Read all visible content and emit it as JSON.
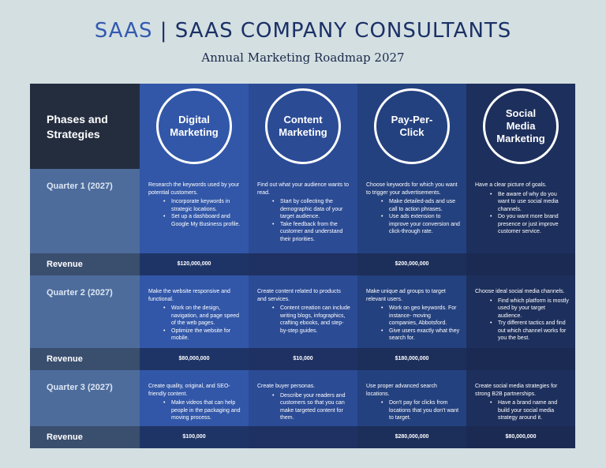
{
  "header": {
    "brand": "SAAS",
    "title_rest": "| SAAS COMPANY CONSULTANTS",
    "subtitle": "Annual Marketing Roadmap 2027"
  },
  "table": {
    "corner_label": "Phases and Strategies",
    "columns": [
      "Digital Marketing",
      "Content Marketing",
      "Pay-Per-Click",
      "Social Media Marketing"
    ],
    "revenue_label": "Revenue",
    "quarters": [
      {
        "label": "Quarter 1 (2027)",
        "cells": [
          {
            "intro": "Research the keywords used by your potential customers.",
            "bullets": [
              "Incorporate keywords in strategic locations.",
              "Set up a dashboard and Google My Business profile."
            ]
          },
          {
            "intro": "Find out what your audience wants to read.",
            "bullets": [
              "Start by collecting the demographic data of your target audience.",
              "Take feedback from the customer and understand their priorities."
            ]
          },
          {
            "intro": "Choose keywords for which you want to trigger your advertisements.",
            "bullets": [
              "Make detailed-ads and use call to action phrases.",
              "Use ads extension to improve your conversion and click-through rate."
            ]
          },
          {
            "intro": "Have a clear picture of goals.",
            "bullets": [
              "Be aware of why do you want to use social media channels.",
              "Do you want more brand presence or just improve customer service."
            ]
          }
        ],
        "revenue": [
          "$120,000,000",
          "",
          "$200,000,000",
          ""
        ]
      },
      {
        "label": "Quarter 2 (2027)",
        "cells": [
          {
            "intro": "Make the website responsive and functional.",
            "bullets": [
              "Work on the design, navigation, and page speed of the web pages.",
              "Optimize the website for mobile."
            ]
          },
          {
            "intro": "Create content related to products and services.",
            "bullets": [
              "Content creation can include writing blogs, infographics, crafting ebooks, and step-by-step guides."
            ]
          },
          {
            "intro": "Make unique ad groups to target relevant users.",
            "bullets": [
              "Work on geo keywords. For instance- moving companies, Abbotsford.",
              "Give users exactly what they search for."
            ]
          },
          {
            "intro": "Choose ideal social media channels.",
            "bullets": [
              "Find which platform is mostly used by your target audience.",
              "Try different tactics and find out which channel works for you the best."
            ]
          }
        ],
        "revenue": [
          "$80,000,000",
          "$10,000",
          "$180,000,000",
          ""
        ]
      },
      {
        "label": "Quarter 3 (2027)",
        "cells": [
          {
            "intro": "Create quality, original, and SEO-friendly content.",
            "bullets": [
              "Make videos that can help people in the packaging and moving process."
            ]
          },
          {
            "intro": "Create buyer personas.",
            "bullets": [
              "Describe your readers and customers so that you can make targeted content for them."
            ]
          },
          {
            "intro": "Use proper advanced search locations.",
            "bullets": [
              "Don't pay for clicks from locations that you don't want to target."
            ]
          },
          {
            "intro": "Create social media strategies for strong B2B partnerships.",
            "bullets": [
              "Have a brand name and build your social media strategy around it."
            ]
          }
        ],
        "revenue": [
          "$100,000",
          "",
          "$280,000,000",
          "$80,000,000"
        ]
      }
    ]
  }
}
